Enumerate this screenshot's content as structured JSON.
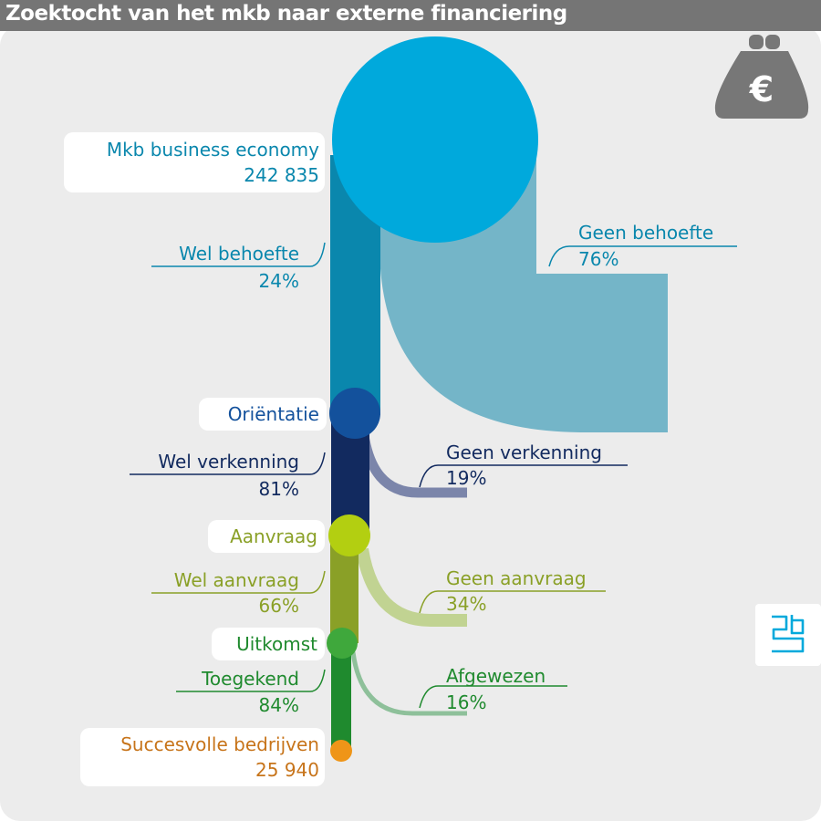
{
  "title": "Zoektocht van het mkb naar externe financiering",
  "icons": {
    "badge": "euro-purse-icon",
    "logo": "cbs-logo-icon"
  },
  "euro_symbol": "€",
  "colors": {
    "background": "#ececec",
    "title_bar": "#757575",
    "start": "#00a9dc",
    "wel_behoefte": "#0a87ad",
    "geen_behoefte": "#74b5c8",
    "orientatie": "#13519c",
    "wel_verkenning": "#122a5f",
    "geen_verkenning": "#7b85aa",
    "aanvraag": "#b3cf11",
    "wel_aanvraag": "#8aa027",
    "geen_aanvraag": "#c1d392",
    "uitkomst": "#3fa83c",
    "toegekend": "#1f8a2e",
    "afgewezen": "#8ec09a",
    "end": "#ef9518",
    "icon_gray": "#777777"
  },
  "nodes": {
    "start": {
      "name": "Mkb business economy",
      "value": "242 835"
    },
    "orientatie": {
      "name": "Oriëntatie"
    },
    "aanvraag": {
      "name": "Aanvraag"
    },
    "uitkomst": {
      "name": "Uitkomst"
    },
    "end": {
      "name": "Succesvolle bedrijven",
      "value": "25 940"
    }
  },
  "flows": {
    "wel_behoefte": {
      "label": "Wel behoefte",
      "percent": "24%",
      "share": 0.24
    },
    "geen_behoefte": {
      "label": "Geen behoefte",
      "percent": "76%",
      "share": 0.76
    },
    "wel_verkenning": {
      "label": "Wel verkenning",
      "percent": "81%",
      "share": 0.81
    },
    "geen_verkenning": {
      "label": "Geen verkenning",
      "percent": "19%",
      "share": 0.19
    },
    "wel_aanvraag": {
      "label": "Wel aanvraag",
      "percent": "66%",
      "share": 0.66
    },
    "geen_aanvraag": {
      "label": "Geen aanvraag",
      "percent": "34%",
      "share": 0.34
    },
    "toegekend": {
      "label": "Toegekend",
      "percent": "84%",
      "share": 0.84
    },
    "afgewezen": {
      "label": "Afgewezen",
      "percent": "16%",
      "share": 0.16
    }
  }
}
